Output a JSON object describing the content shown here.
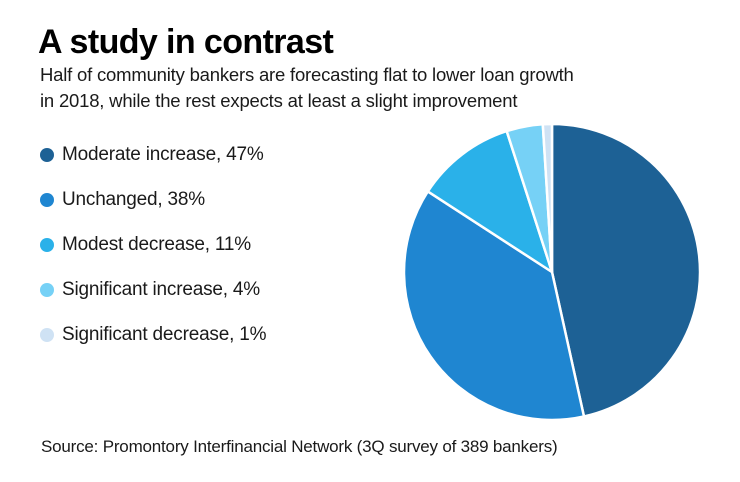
{
  "header": {
    "title": "A study in contrast",
    "subtitle_lines": [
      "Half of community bankers are forecasting flat to lower loan growth",
      "in 2018, while the rest expects at least a slight improvement"
    ]
  },
  "legend": {
    "items": [
      {
        "text": "Moderate increase, 47%",
        "color": "#1d6195"
      },
      {
        "text": "Unchanged, 38%",
        "color": "#1f86d1"
      },
      {
        "text": "Modest decrease, 11%",
        "color": "#2ab1e9"
      },
      {
        "text": "Significant increase, 4%",
        "color": "#76d1f6"
      },
      {
        "text": "Significant decrease, 1%",
        "color": "#cfe2f4"
      }
    ]
  },
  "footer": {
    "source": "Source: Promontory Interfinancial Network (3Q survey of 389 bankers)"
  },
  "colors": {
    "background": "#ffffff",
    "text": "#1a1a1a",
    "slice_border": "#ffffff"
  },
  "chart_data": {
    "type": "pie",
    "title": "A study in contrast",
    "categories": [
      "Moderate increase",
      "Unchanged",
      "Modest decrease",
      "Significant increase",
      "Significant decrease"
    ],
    "values": [
      47,
      38,
      11,
      4,
      1
    ],
    "unit": "%",
    "colors": [
      "#1d6195",
      "#1f86d1",
      "#2ab1e9",
      "#76d1f6",
      "#cfe2f4"
    ],
    "start_angle_deg": 0,
    "direction": "clockwise",
    "legend_position": "left",
    "slice_border_color": "#ffffff",
    "slice_border_width": 2.5
  }
}
